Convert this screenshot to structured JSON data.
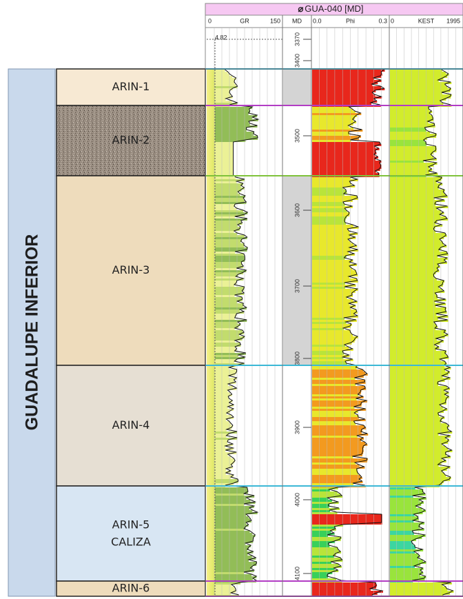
{
  "header": {
    "title": "GUA-040 [MD]"
  },
  "tracks": [
    {
      "min": "0",
      "name": "GR",
      "max": "150"
    },
    {
      "name": "MD"
    },
    {
      "min": "0.0",
      "name": "Phi",
      "max": "0.3"
    },
    {
      "min": "0",
      "name": "KEST",
      "max": "1995"
    }
  ],
  "gr_cutoff_label": "4.82",
  "depth_labels": [
    "3370",
    "3400",
    "3500",
    "3600",
    "3700",
    "3800",
    "3900",
    "4000",
    "4100"
  ],
  "group_label": "GUADALUPE INFERIOR",
  "zones": [
    {
      "name": "ARIN-1"
    },
    {
      "name": "ARIN-2"
    },
    {
      "name": "ARIN-3"
    },
    {
      "name": "ARIN-4"
    },
    {
      "name": "ARIN-5",
      "lithology": "CALIZA"
    },
    {
      "name": "ARIN-6"
    }
  ]
}
